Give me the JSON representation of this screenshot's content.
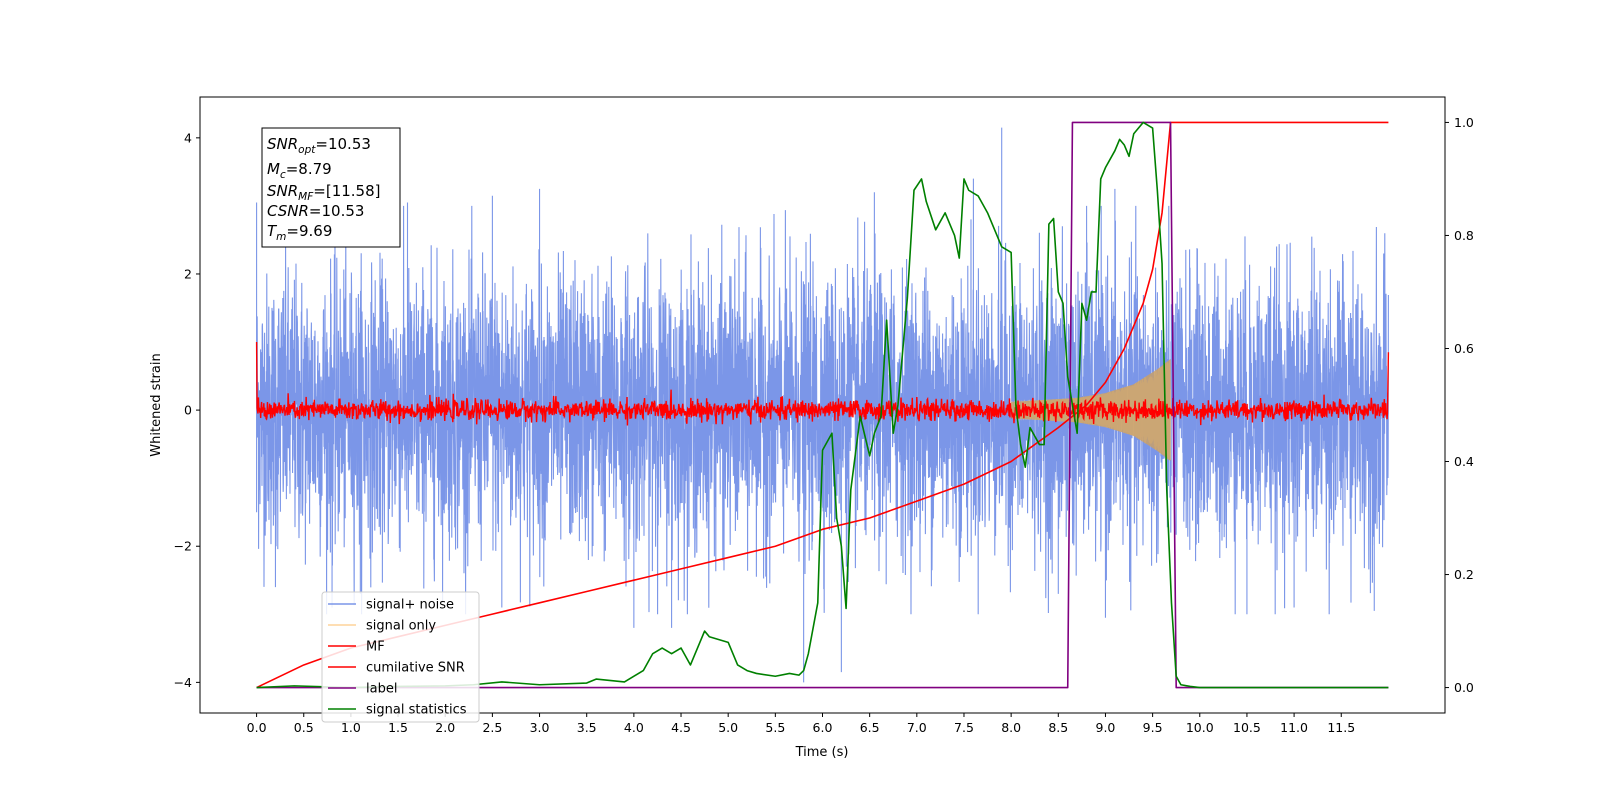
{
  "chart_data": {
    "type": "line",
    "xlabel": "Time (s)",
    "ylabel": "Whitened strain",
    "xlim": [
      -0.6,
      12.6
    ],
    "ylim": [
      -4.45,
      4.6
    ],
    "y2lim": [
      -0.045,
      1.045
    ],
    "xticks": [
      0.0,
      0.5,
      1.0,
      1.5,
      2.0,
      2.5,
      3.0,
      3.5,
      4.0,
      4.5,
      5.0,
      5.5,
      6.0,
      6.5,
      7.0,
      7.5,
      8.0,
      8.5,
      9.0,
      9.5,
      10.0,
      10.5,
      11.0,
      11.5
    ],
    "xtick_labels": [
      "0.0",
      "0.5",
      "1.0",
      "1.5",
      "2.0",
      "2.5",
      "3.0",
      "3.5",
      "4.0",
      "4.5",
      "5.0",
      "5.5",
      "6.0",
      "6.5",
      "7.0",
      "7.5",
      "8.0",
      "8.5",
      "9.0",
      "9.5",
      "10.0",
      "10.5",
      "11.0",
      "11.5"
    ],
    "yticks": [
      -4,
      -2,
      0,
      2,
      4
    ],
    "ytick_labels": [
      "−4",
      "−2",
      "0",
      "2",
      "4"
    ],
    "y2ticks": [
      0.0,
      0.2,
      0.4,
      0.6,
      0.8,
      1.0
    ],
    "y2tick_labels": [
      "0.0",
      "0.2",
      "0.4",
      "0.6",
      "0.8",
      "1.0"
    ],
    "grid": false,
    "legend_location": "lower-left",
    "info_box": {
      "snr_opt": {
        "main": "SNR",
        "sub": "opt",
        "value": "=10.53"
      },
      "mc": {
        "main": "M",
        "sub": "c",
        "value": "=8.79"
      },
      "snr_mf": {
        "main": "SNR",
        "sub": "MF",
        "value": "=[11.58]"
      },
      "csnr": {
        "main": "CSNR",
        "value": "=10.53"
      },
      "tm": {
        "main": "T",
        "sub": "m",
        "value": "=9.69"
      }
    },
    "series": [
      {
        "name": "signal+ noise",
        "color": "#7b96e8",
        "axis": "left",
        "kind": "noise",
        "x_range": [
          0.0,
          12.0
        ],
        "typical_band": [
          -1.8,
          1.8
        ],
        "peaks": [
          {
            "x": 0.0,
            "y": 3.05
          },
          {
            "x": 0.0,
            "y": -1.5
          },
          {
            "x": 0.2,
            "y": -2.6
          },
          {
            "x": 0.8,
            "y": -2.9
          },
          {
            "x": 1.1,
            "y": -2.7
          },
          {
            "x": 1.6,
            "y": 3.05
          },
          {
            "x": 2.5,
            "y": 3.15
          },
          {
            "x": 2.6,
            "y": -2.9
          },
          {
            "x": 3.0,
            "y": 3.25
          },
          {
            "x": 4.0,
            "y": -3.2
          },
          {
            "x": 4.4,
            "y": -3.2
          },
          {
            "x": 5.8,
            "y": -4.0
          },
          {
            "x": 6.2,
            "y": -3.85
          },
          {
            "x": 6.55,
            "y": 3.2
          },
          {
            "x": 7.6,
            "y": 3.4
          },
          {
            "x": 7.9,
            "y": 4.15
          },
          {
            "x": 8.8,
            "y": 3.0
          },
          {
            "x": 8.5,
            "y": -2.7
          },
          {
            "x": 9.0,
            "y": -3.05
          },
          {
            "x": 9.1,
            "y": 3.25
          },
          {
            "x": 10.5,
            "y": -3.0
          },
          {
            "x": 11.0,
            "y": -2.9
          },
          {
            "x": 11.85,
            "y": -2.95
          },
          {
            "x": 11.95,
            "y": 2.3
          }
        ]
      },
      {
        "name": "signal only",
        "color": "#fdd49a",
        "axis": "left",
        "kind": "chirp",
        "t_merge": 9.69,
        "amplitude": [
          [
            8.0,
            0.12
          ],
          [
            8.7,
            0.18
          ],
          [
            9.0,
            0.25
          ],
          [
            9.3,
            0.38
          ],
          [
            9.55,
            0.6
          ],
          [
            9.69,
            0.75
          ]
        ]
      },
      {
        "name": "MF",
        "color": "#ff0000",
        "axis": "left",
        "kind": "noise",
        "x_range": [
          0.0,
          12.0
        ],
        "typical_band": [
          -0.15,
          0.15
        ],
        "edges": [
          {
            "x": 0.0,
            "y": 1.0
          },
          {
            "x": 12.0,
            "y": 0.85
          }
        ]
      },
      {
        "name": "cumilative SNR",
        "color": "#ff0000",
        "axis": "right",
        "x": [
          0.0,
          0.5,
          1.0,
          1.5,
          2.0,
          2.5,
          3.0,
          3.5,
          4.0,
          4.5,
          5.0,
          5.5,
          6.0,
          6.5,
          7.0,
          7.5,
          8.0,
          8.5,
          8.8,
          9.0,
          9.2,
          9.4,
          9.5,
          9.6,
          9.69,
          9.8,
          12.0
        ],
        "y": [
          0.0,
          0.04,
          0.07,
          0.09,
          0.11,
          0.13,
          0.15,
          0.17,
          0.19,
          0.21,
          0.23,
          0.25,
          0.28,
          0.3,
          0.33,
          0.36,
          0.4,
          0.46,
          0.5,
          0.54,
          0.6,
          0.68,
          0.74,
          0.84,
          1.0,
          1.0,
          1.0
        ]
      },
      {
        "name": "label",
        "color": "#800080",
        "axis": "right",
        "x": [
          0.0,
          8.6,
          8.65,
          9.6,
          9.69,
          9.75,
          12.0
        ],
        "y": [
          0.0,
          0.0,
          1.0,
          1.0,
          1.0,
          0.0,
          0.0
        ]
      },
      {
        "name": "signal statistics",
        "color": "#008000",
        "axis": "right",
        "x": [
          0.0,
          0.4,
          1.0,
          1.5,
          2.0,
          2.3,
          2.6,
          3.0,
          3.5,
          3.6,
          3.9,
          4.1,
          4.2,
          4.3,
          4.4,
          4.5,
          4.6,
          4.75,
          4.8,
          5.0,
          5.1,
          5.2,
          5.3,
          5.5,
          5.65,
          5.75,
          5.8,
          5.85,
          5.95,
          6.0,
          6.1,
          6.15,
          6.2,
          6.25,
          6.3,
          6.4,
          6.5,
          6.55,
          6.62,
          6.68,
          6.75,
          6.8,
          6.9,
          6.97,
          7.05,
          7.1,
          7.2,
          7.3,
          7.4,
          7.45,
          7.5,
          7.55,
          7.65,
          7.75,
          7.9,
          8.0,
          8.05,
          8.1,
          8.15,
          8.2,
          8.3,
          8.35,
          8.4,
          8.45,
          8.5,
          8.55,
          8.6,
          8.65,
          8.7,
          8.75,
          8.8,
          8.85,
          8.9,
          8.95,
          9.0,
          9.1,
          9.15,
          9.2,
          9.25,
          9.3,
          9.4,
          9.5,
          9.55,
          9.6,
          9.65,
          9.7,
          9.75,
          9.8,
          9.9,
          10.0,
          12.0
        ],
        "y": [
          0.0,
          0.003,
          0.0,
          0.002,
          0.003,
          0.005,
          0.01,
          0.005,
          0.008,
          0.015,
          0.01,
          0.03,
          0.06,
          0.07,
          0.06,
          0.07,
          0.04,
          0.1,
          0.09,
          0.08,
          0.04,
          0.03,
          0.025,
          0.02,
          0.025,
          0.022,
          0.03,
          0.06,
          0.15,
          0.42,
          0.45,
          0.3,
          0.25,
          0.14,
          0.35,
          0.48,
          0.41,
          0.45,
          0.48,
          0.65,
          0.45,
          0.5,
          0.69,
          0.88,
          0.9,
          0.86,
          0.81,
          0.84,
          0.8,
          0.76,
          0.9,
          0.88,
          0.87,
          0.84,
          0.78,
          0.77,
          0.5,
          0.43,
          0.39,
          0.46,
          0.43,
          0.43,
          0.82,
          0.83,
          0.7,
          0.68,
          0.55,
          0.5,
          0.45,
          0.68,
          0.65,
          0.7,
          0.7,
          0.9,
          0.92,
          0.95,
          0.97,
          0.96,
          0.94,
          0.98,
          1.0,
          0.99,
          0.88,
          0.75,
          0.35,
          0.15,
          0.02,
          0.005,
          0.002,
          0.0,
          0.0
        ]
      }
    ]
  }
}
